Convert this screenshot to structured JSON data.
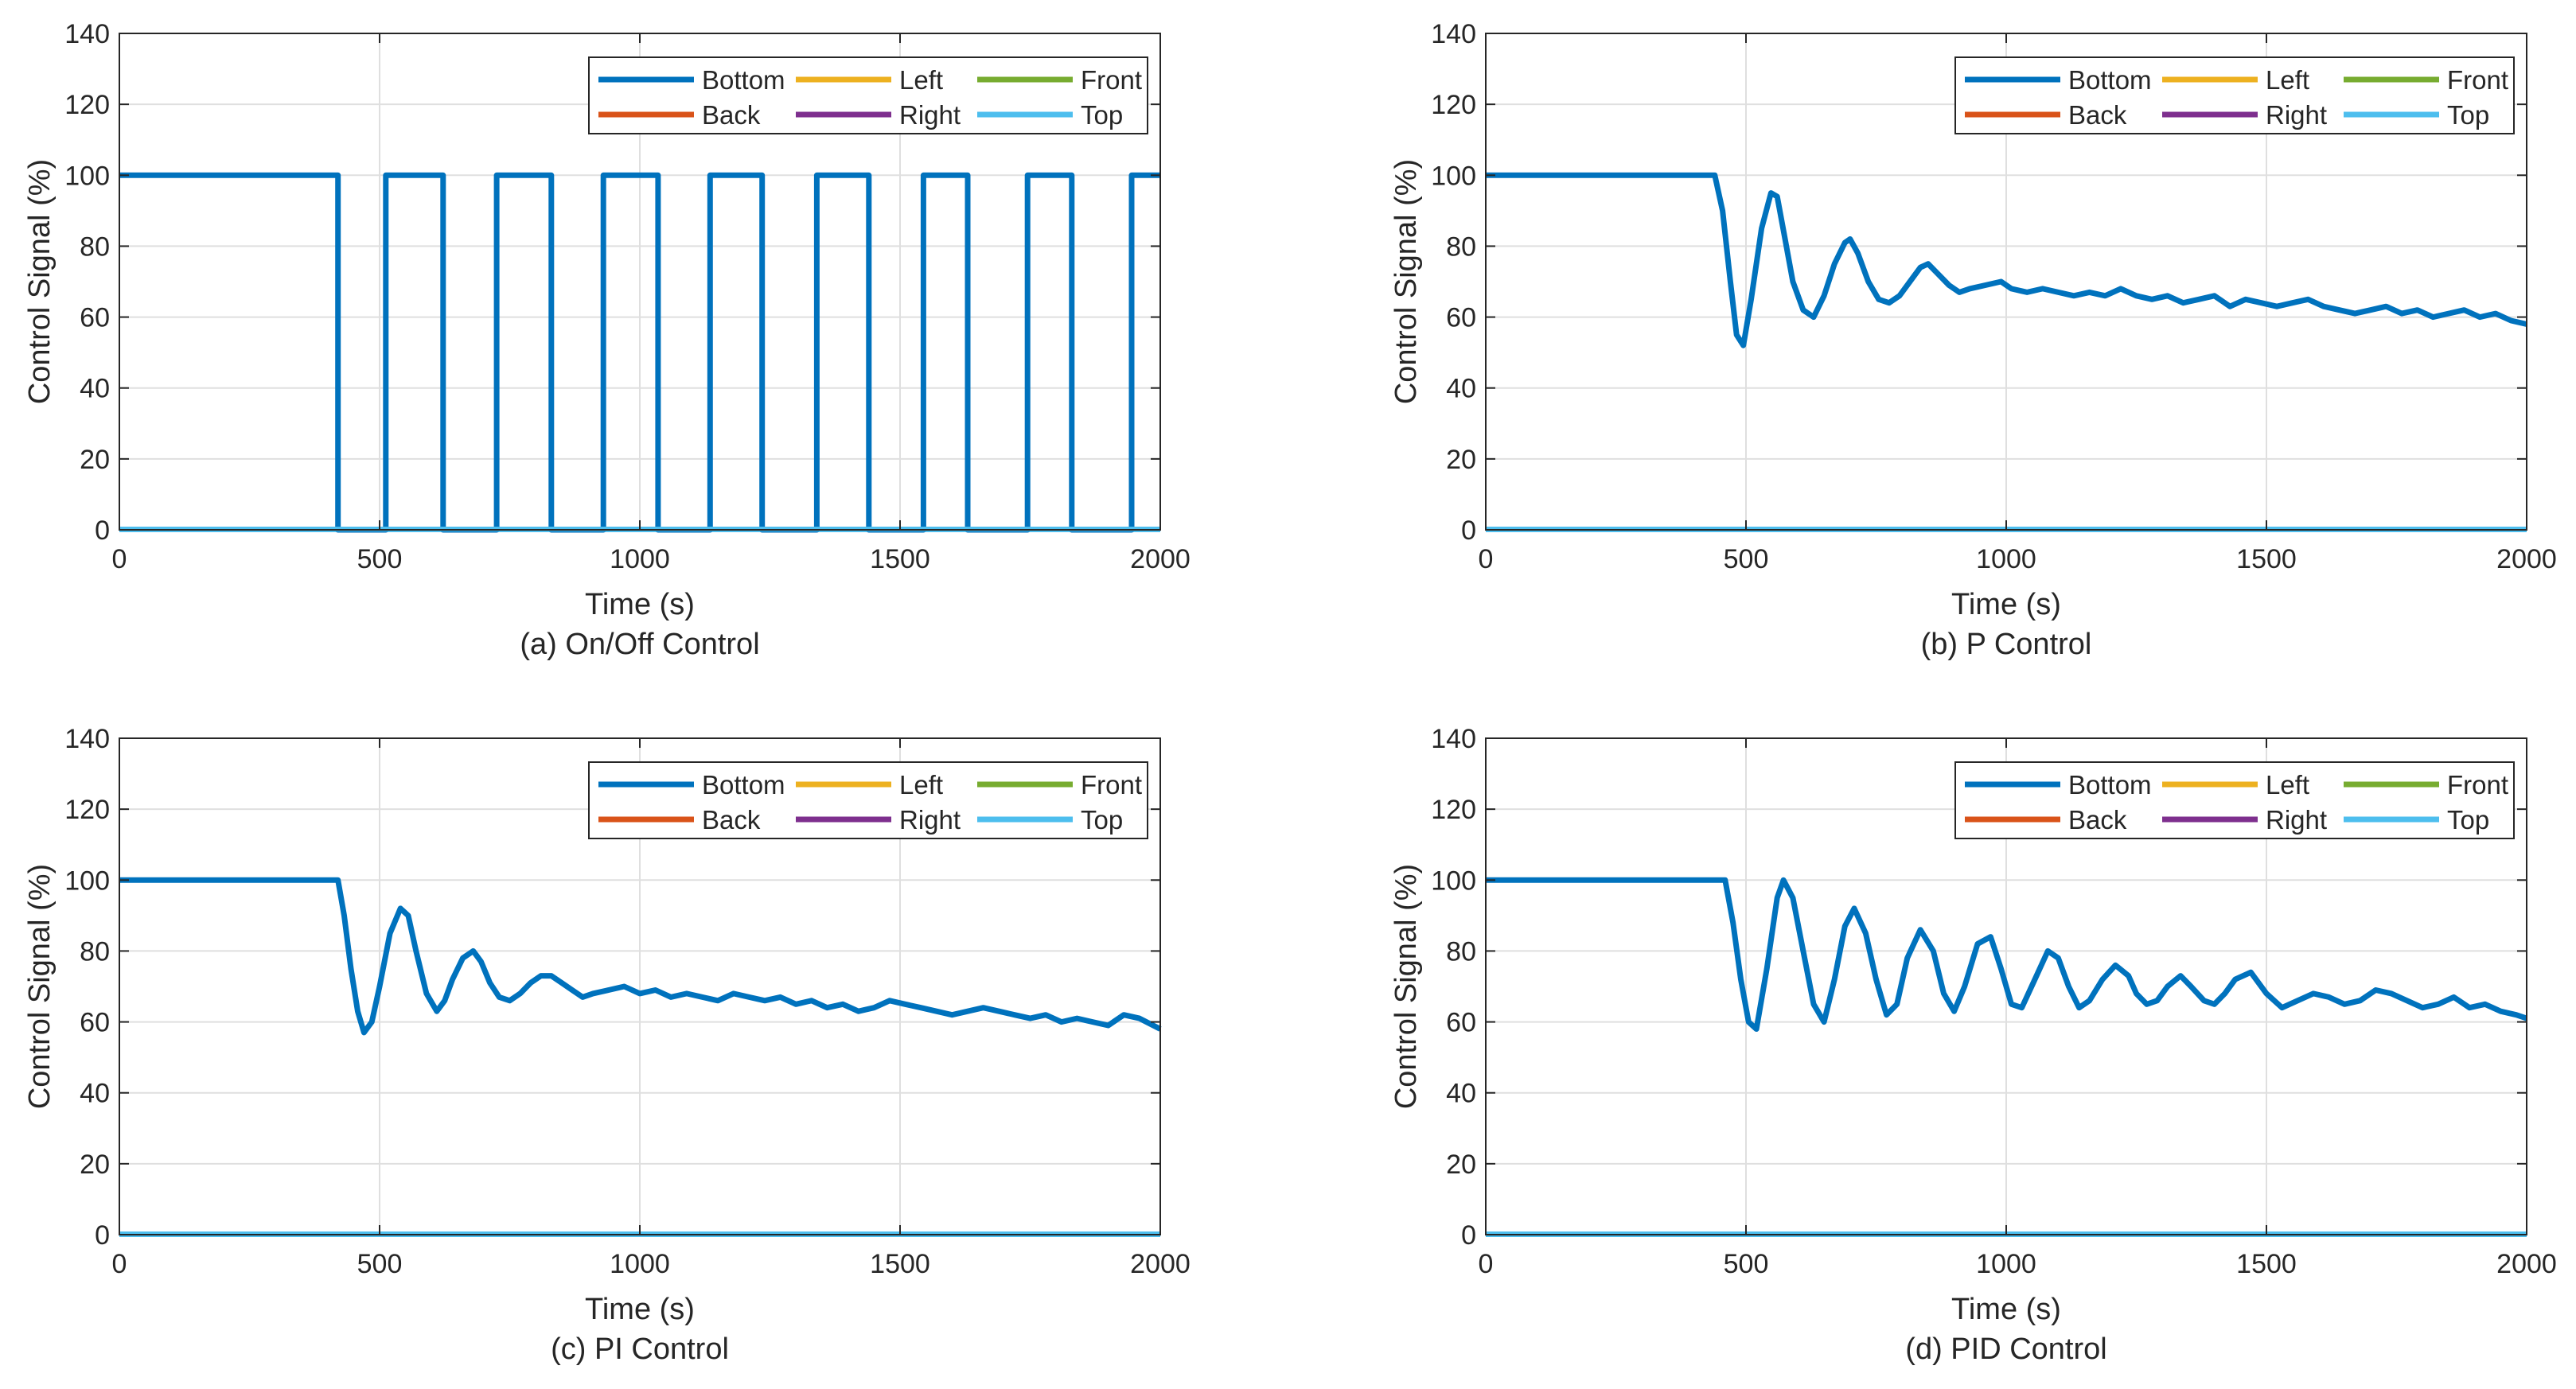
{
  "colors": {
    "bottom": "#0072BD",
    "back": "#D95319",
    "left": "#EDB120",
    "right": "#7E2F8E",
    "front": "#77AC30",
    "top": "#4DBEEE",
    "grid": "#DFDFDF",
    "axis": "#262626"
  },
  "chart_data": [
    {
      "id": "a",
      "type": "line",
      "caption": "(a) On/Off Control",
      "xlabel": "Time (s)",
      "ylabel": "Control Signal (%)",
      "xlim": [
        0,
        2000
      ],
      "ylim": [
        0,
        140
      ],
      "xticks": [
        0,
        500,
        1000,
        1500,
        2000
      ],
      "yticks": [
        0,
        20,
        40,
        60,
        80,
        100,
        120,
        140
      ],
      "grid": true,
      "legend": [
        "Bottom",
        "Left",
        "Front",
        "Back",
        "Right",
        "Top"
      ],
      "legend_placement": "top-right",
      "series": [
        {
          "name": "Bottom",
          "color_key": "bottom",
          "style": "step",
          "x": [
            0,
            420,
            420,
            512,
            512,
            622,
            622,
            725,
            725,
            830,
            830,
            930,
            930,
            1035,
            1035,
            1135,
            1135,
            1235,
            1235,
            1340,
            1340,
            1440,
            1440,
            1545,
            1545,
            1630,
            1630,
            1745,
            1745,
            1830,
            1830,
            1945,
            1945,
            2000
          ],
          "y": [
            100,
            100,
            0,
            0,
            100,
            100,
            0,
            0,
            100,
            100,
            0,
            0,
            100,
            100,
            0,
            0,
            100,
            100,
            0,
            0,
            100,
            100,
            0,
            0,
            100,
            100,
            0,
            0,
            100,
            100,
            0,
            0,
            100,
            100
          ]
        },
        {
          "name": "Left",
          "color_key": "left",
          "x": [
            0,
            2000
          ],
          "y": [
            0,
            0
          ]
        },
        {
          "name": "Front",
          "color_key": "front",
          "x": [
            0,
            2000
          ],
          "y": [
            0,
            0
          ]
        },
        {
          "name": "Back",
          "color_key": "back",
          "x": [
            0,
            2000
          ],
          "y": [
            0,
            0
          ]
        },
        {
          "name": "Right",
          "color_key": "right",
          "x": [
            0,
            2000
          ],
          "y": [
            0,
            0
          ]
        },
        {
          "name": "Top",
          "color_key": "top",
          "x": [
            0,
            2000
          ],
          "y": [
            0,
            0
          ]
        }
      ]
    },
    {
      "id": "b",
      "type": "line",
      "caption": "(b) P Control",
      "xlabel": "Time (s)",
      "ylabel": "Control Signal (%)",
      "xlim": [
        0,
        2000
      ],
      "ylim": [
        0,
        140
      ],
      "xticks": [
        0,
        500,
        1000,
        1500,
        2000
      ],
      "yticks": [
        0,
        20,
        40,
        60,
        80,
        100,
        120,
        140
      ],
      "grid": true,
      "legend": [
        "Bottom",
        "Left",
        "Front",
        "Back",
        "Right",
        "Top"
      ],
      "legend_placement": "top-right",
      "series": [
        {
          "name": "Bottom",
          "color_key": "bottom",
          "x": [
            0,
            440,
            455,
            470,
            482,
            495,
            510,
            530,
            548,
            560,
            575,
            590,
            610,
            630,
            650,
            670,
            690,
            700,
            715,
            735,
            755,
            775,
            795,
            815,
            835,
            850,
            870,
            890,
            910,
            930,
            960,
            990,
            1010,
            1040,
            1070,
            1100,
            1130,
            1160,
            1190,
            1220,
            1250,
            1280,
            1310,
            1340,
            1370,
            1400,
            1430,
            1460,
            1490,
            1520,
            1550,
            1580,
            1610,
            1640,
            1670,
            1700,
            1730,
            1760,
            1790,
            1820,
            1850,
            1880,
            1910,
            1940,
            1970,
            2000
          ],
          "y": [
            100,
            100,
            90,
            70,
            55,
            52,
            65,
            85,
            95,
            94,
            82,
            70,
            62,
            60,
            66,
            75,
            81,
            82,
            78,
            70,
            65,
            64,
            66,
            70,
            74,
            75,
            72,
            69,
            67,
            68,
            69,
            70,
            68,
            67,
            68,
            67,
            66,
            67,
            66,
            68,
            66,
            65,
            66,
            64,
            65,
            66,
            63,
            65,
            64,
            63,
            64,
            65,
            63,
            62,
            61,
            62,
            63,
            61,
            62,
            60,
            61,
            62,
            60,
            61,
            59,
            58
          ]
        },
        {
          "name": "Left",
          "color_key": "left",
          "x": [
            0,
            2000
          ],
          "y": [
            0,
            0
          ]
        },
        {
          "name": "Front",
          "color_key": "front",
          "x": [
            0,
            2000
          ],
          "y": [
            0,
            0
          ]
        },
        {
          "name": "Back",
          "color_key": "back",
          "x": [
            0,
            2000
          ],
          "y": [
            0,
            0
          ]
        },
        {
          "name": "Right",
          "color_key": "right",
          "x": [
            0,
            2000
          ],
          "y": [
            0,
            0
          ]
        },
        {
          "name": "Top",
          "color_key": "top",
          "x": [
            0,
            2000
          ],
          "y": [
            0,
            0
          ]
        }
      ]
    },
    {
      "id": "c",
      "type": "line",
      "caption": "(c) PI Control",
      "xlabel": "Time (s)",
      "ylabel": "Control Signal (%)",
      "xlim": [
        0,
        2000
      ],
      "ylim": [
        0,
        140
      ],
      "xticks": [
        0,
        500,
        1000,
        1500,
        2000
      ],
      "yticks": [
        0,
        20,
        40,
        60,
        80,
        100,
        120,
        140
      ],
      "grid": true,
      "legend": [
        "Bottom",
        "Left",
        "Front",
        "Back",
        "Right",
        "Top"
      ],
      "legend_placement": "top-right",
      "series": [
        {
          "name": "Bottom",
          "color_key": "bottom",
          "x": [
            0,
            420,
            432,
            445,
            458,
            470,
            485,
            500,
            520,
            540,
            555,
            570,
            590,
            610,
            625,
            640,
            660,
            680,
            695,
            712,
            730,
            750,
            770,
            790,
            810,
            830,
            850,
            870,
            890,
            910,
            940,
            970,
            1000,
            1030,
            1060,
            1090,
            1120,
            1150,
            1180,
            1210,
            1240,
            1270,
            1300,
            1330,
            1360,
            1390,
            1420,
            1450,
            1480,
            1510,
            1540,
            1570,
            1600,
            1630,
            1660,
            1690,
            1720,
            1750,
            1780,
            1810,
            1840,
            1870,
            1900,
            1930,
            1960,
            2000
          ],
          "y": [
            100,
            100,
            90,
            75,
            63,
            57,
            60,
            70,
            85,
            92,
            90,
            80,
            68,
            63,
            66,
            72,
            78,
            80,
            77,
            71,
            67,
            66,
            68,
            71,
            73,
            73,
            71,
            69,
            67,
            68,
            69,
            70,
            68,
            69,
            67,
            68,
            67,
            66,
            68,
            67,
            66,
            67,
            65,
            66,
            64,
            65,
            63,
            64,
            66,
            65,
            64,
            63,
            62,
            63,
            64,
            63,
            62,
            61,
            62,
            60,
            61,
            60,
            59,
            62,
            61,
            58
          ]
        },
        {
          "name": "Left",
          "color_key": "left",
          "x": [
            0,
            2000
          ],
          "y": [
            0,
            0
          ]
        },
        {
          "name": "Front",
          "color_key": "front",
          "x": [
            0,
            2000
          ],
          "y": [
            0,
            0
          ]
        },
        {
          "name": "Back",
          "color_key": "back",
          "x": [
            0,
            2000
          ],
          "y": [
            0,
            0
          ]
        },
        {
          "name": "Right",
          "color_key": "right",
          "x": [
            0,
            2000
          ],
          "y": [
            0,
            0
          ]
        },
        {
          "name": "Top",
          "color_key": "top",
          "x": [
            0,
            2000
          ],
          "y": [
            0,
            0
          ]
        }
      ]
    },
    {
      "id": "d",
      "type": "line",
      "caption": "(d) PID Control",
      "xlabel": "Time (s)",
      "ylabel": "Control Signal (%)",
      "xlim": [
        0,
        2000
      ],
      "ylim": [
        0,
        140
      ],
      "xticks": [
        0,
        500,
        1000,
        1500,
        2000
      ],
      "yticks": [
        0,
        20,
        40,
        60,
        80,
        100,
        120,
        140
      ],
      "grid": true,
      "legend": [
        "Bottom",
        "Left",
        "Front",
        "Back",
        "Right",
        "Top"
      ],
      "legend_placement": "top-right",
      "series": [
        {
          "name": "Bottom",
          "color_key": "bottom",
          "x": [
            0,
            460,
            475,
            490,
            505,
            520,
            540,
            560,
            572,
            590,
            610,
            630,
            650,
            670,
            690,
            708,
            730,
            750,
            770,
            790,
            810,
            835,
            860,
            880,
            900,
            920,
            945,
            970,
            990,
            1010,
            1030,
            1055,
            1080,
            1100,
            1120,
            1140,
            1160,
            1185,
            1210,
            1235,
            1250,
            1270,
            1290,
            1310,
            1335,
            1355,
            1380,
            1400,
            1420,
            1440,
            1470,
            1500,
            1530,
            1560,
            1590,
            1620,
            1650,
            1680,
            1710,
            1740,
            1770,
            1800,
            1830,
            1860,
            1890,
            1920,
            1950,
            1980,
            2000
          ],
          "y": [
            100,
            100,
            88,
            72,
            60,
            58,
            75,
            95,
            100,
            95,
            80,
            65,
            60,
            72,
            87,
            92,
            85,
            72,
            62,
            65,
            78,
            86,
            80,
            68,
            63,
            70,
            82,
            84,
            75,
            65,
            64,
            72,
            80,
            78,
            70,
            64,
            66,
            72,
            76,
            73,
            68,
            65,
            66,
            70,
            73,
            70,
            66,
            65,
            68,
            72,
            74,
            68,
            64,
            66,
            68,
            67,
            65,
            66,
            69,
            68,
            66,
            64,
            65,
            67,
            64,
            65,
            63,
            62,
            61
          ]
        },
        {
          "name": "Left",
          "color_key": "left",
          "x": [
            0,
            2000
          ],
          "y": [
            0,
            0
          ]
        },
        {
          "name": "Front",
          "color_key": "front",
          "x": [
            0,
            2000
          ],
          "y": [
            0,
            0
          ]
        },
        {
          "name": "Back",
          "color_key": "back",
          "x": [
            0,
            2000
          ],
          "y": [
            0,
            0
          ]
        },
        {
          "name": "Right",
          "color_key": "right",
          "x": [
            0,
            2000
          ],
          "y": [
            0,
            0
          ]
        },
        {
          "name": "Top",
          "color_key": "top",
          "x": [
            0,
            2000
          ],
          "y": [
            0,
            0
          ]
        }
      ]
    }
  ]
}
